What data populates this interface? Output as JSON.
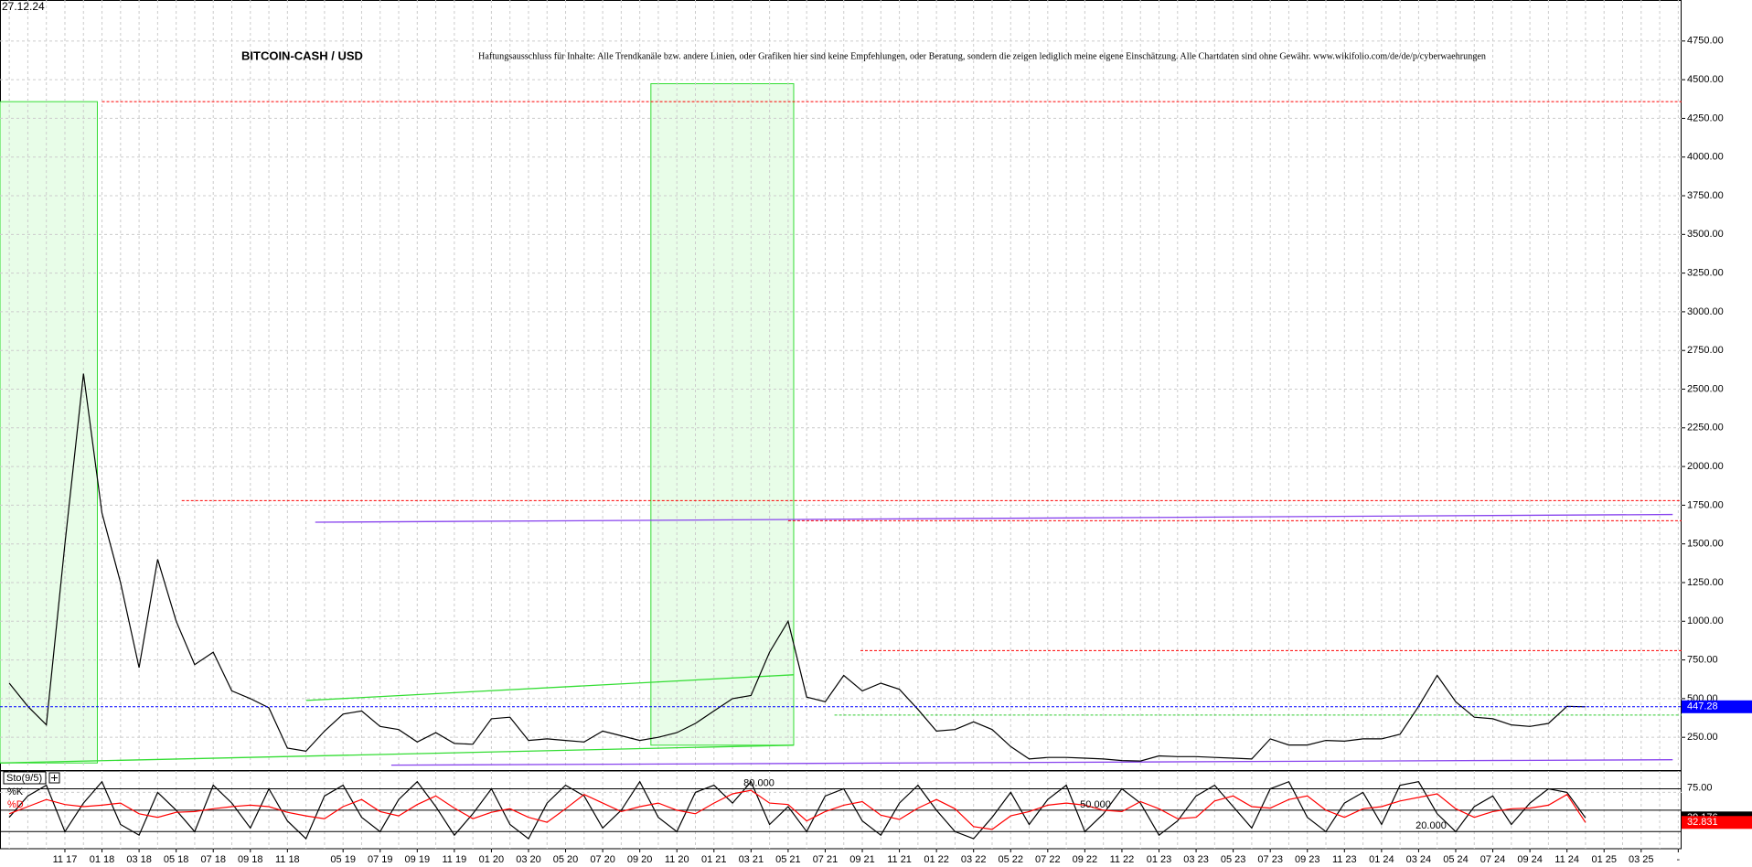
{
  "chart_data": [
    {
      "type": "line",
      "date_label": "27.12.24",
      "title": "BITCOIN-CASH / USD",
      "annotation": "Haftungsausschluss für Inhalte: Alle Trendkanäle bzw. andere Linien, oder Grafiken hier sind keine Empfehlungen, oder Beratung, sondern die zeigen lediglich meine eigene Einschätzung. Alle Chartdaten sind ohne Gewähr. www.wikifolio.com/de/de/p/cyberwaehrungen",
      "categories": [
        null,
        null,
        null,
        "11 17",
        null,
        "01 18",
        null,
        "03 18",
        null,
        "05 18",
        null,
        "07 18",
        null,
        "09 18",
        null,
        "11 18",
        null,
        null,
        "05 19",
        null,
        "07 19",
        null,
        "09 19",
        null,
        "11 19",
        null,
        "01 20",
        null,
        "03 20",
        null,
        "05 20",
        null,
        "07 20",
        null,
        "09 20",
        null,
        "11 20",
        null,
        "01 21",
        null,
        "03 21",
        null,
        "05 21",
        null,
        "07 21",
        null,
        "09 21",
        null,
        "11 21",
        null,
        "01 22",
        null,
        "03 22",
        null,
        "05 22",
        null,
        "07 22",
        null,
        "09 22",
        null,
        "11 22",
        null,
        "01 23",
        null,
        "03 23",
        null,
        "05 23",
        null,
        "07 23",
        null,
        "09 23",
        null,
        "11 23",
        null,
        "01 24",
        null,
        "03 24",
        null,
        "05 24",
        null,
        "07 24",
        null,
        "09 24",
        null,
        "11 24",
        null,
        "01 25",
        null,
        "03 25",
        null,
        "-"
      ],
      "series": [
        {
          "color": "#000000",
          "values": [
            600,
            450,
            330,
            1500,
            2600,
            1700,
            1250,
            700,
            1400,
            1000,
            720,
            800,
            550,
            500,
            440,
            180,
            160,
            290,
            400,
            420,
            320,
            300,
            220,
            280,
            210,
            205,
            370,
            380,
            230,
            240,
            230,
            220,
            290,
            260,
            230,
            250,
            280,
            340,
            420,
            500,
            520,
            800,
            1000,
            510,
            480,
            650,
            550,
            600,
            560,
            430,
            290,
            300,
            350,
            300,
            190,
            110,
            120,
            120,
            115,
            110,
            100,
            97,
            130,
            125,
            125,
            120,
            115,
            110,
            240,
            200,
            200,
            230,
            225,
            240,
            240,
            270,
            450,
            650,
            480,
            380,
            370,
            330,
            320,
            340,
            450,
            447.28,
            null,
            null,
            null,
            null,
            null
          ]
        }
      ],
      "ylim": [
        56,
        5015
      ],
      "yticks": [
        {
          "value": 250,
          "label": "250.00"
        },
        {
          "value": 500,
          "label": "500.00"
        },
        {
          "value": 750,
          "label": "750.00"
        },
        {
          "value": 1000,
          "label": "1000.00"
        },
        {
          "value": 1250,
          "label": "1250.00"
        },
        {
          "value": 1500,
          "label": "1500.00"
        },
        {
          "value": 1750,
          "label": "1750.00"
        },
        {
          "value": 2000,
          "label": "2000.00"
        },
        {
          "value": 2250,
          "label": "2250.00"
        },
        {
          "value": 2500,
          "label": "2500.00"
        },
        {
          "value": 2750,
          "label": "2750.00"
        },
        {
          "value": 3000,
          "label": "3000.00"
        },
        {
          "value": 3250,
          "label": "3250.00"
        },
        {
          "value": 3500,
          "label": "3500.00"
        },
        {
          "value": 3750,
          "label": "3750.00"
        },
        {
          "value": 4000,
          "label": "4000.00"
        },
        {
          "value": 4250,
          "label": "4250.00"
        },
        {
          "value": 4500,
          "label": "4500.00"
        },
        {
          "value": 4750,
          "label": "4750.00"
        }
      ],
      "grid": true,
      "current_line_color": "#0000ff",
      "zones": [
        {
          "x": [
            -0.5,
            4.75
          ],
          "y": [
            84,
            4358
          ],
          "fill": "#e8fde8",
          "stroke": "#33dd33"
        },
        {
          "x": [
            34.6,
            42.3
          ],
          "y": [
            199,
            4474
          ],
          "fill": "#e8fde8",
          "stroke": "#33dd33"
        }
      ],
      "hlines": [
        {
          "value": 4358,
          "from": 5,
          "color": "#ff0000"
        },
        {
          "value": 1780,
          "from": 9.3,
          "color": "#ff0000"
        },
        {
          "value": 1650,
          "from": 42,
          "color": "#ff0000"
        },
        {
          "value": 810,
          "from": 45.9,
          "color": "#ff0000"
        },
        {
          "value": 394,
          "from": 44.5,
          "color": "#33cc33"
        }
      ],
      "trendlines": [
        {
          "x": [
            16,
            42.3
          ],
          "y": [
            488,
            654
          ],
          "color": "#33dd33"
        },
        {
          "x": [
            -0.5,
            42.3
          ],
          "y": [
            84,
            199
          ],
          "color": "#33dd33"
        },
        {
          "x": [
            16.5,
            89.7
          ],
          "y": [
            1640,
            1690
          ],
          "color": "#8844ee"
        },
        {
          "x": [
            20.6,
            89.7
          ],
          "y": [
            70,
            105
          ],
          "color": "#8844ee"
        }
      ]
    },
    {
      "type": "line",
      "name": "Sto(9/5)",
      "series": [
        {
          "name": "%K",
          "color": "#000000",
          "values": [
            40,
            70,
            85,
            20,
            60,
            90,
            30,
            15,
            75,
            50,
            20,
            85,
            60,
            25,
            80,
            35,
            10,
            70,
            85,
            40,
            20,
            65,
            90,
            55,
            15,
            45,
            80,
            30,
            10,
            60,
            85,
            70,
            25,
            50,
            90,
            40,
            20,
            75,
            85,
            60,
            90,
            30,
            55,
            20,
            70,
            80,
            35,
            15,
            60,
            85,
            50,
            20,
            10,
            40,
            75,
            30,
            65,
            85,
            20,
            45,
            80,
            60,
            15,
            35,
            70,
            85,
            55,
            25,
            80,
            90,
            40,
            20,
            60,
            75,
            30,
            85,
            90,
            45,
            20,
            55,
            70,
            30,
            60,
            80,
            75,
            39.176,
            null,
            null,
            null,
            null,
            null
          ]
        },
        {
          "name": "%D",
          "color": "#ff0000",
          "values": [
            45,
            55,
            65,
            58,
            55,
            57,
            60,
            45,
            40,
            47,
            48,
            52,
            55,
            57,
            55,
            47,
            42,
            38,
            55,
            65,
            48,
            42,
            58,
            70,
            53,
            38,
            47,
            52,
            40,
            33,
            52,
            72,
            60,
            48,
            55,
            60,
            50,
            45,
            60,
            73,
            78,
            60,
            58,
            35,
            48,
            57,
            62,
            43,
            37,
            53,
            65,
            52,
            27,
            23,
            42,
            48,
            57,
            60,
            57,
            50,
            48,
            62,
            52,
            38,
            40,
            63,
            70,
            55,
            53,
            65,
            70,
            50,
            40,
            52,
            55,
            63,
            68,
            73,
            52,
            40,
            48,
            52,
            53,
            57,
            72,
            32.831,
            null,
            null,
            null,
            null,
            null
          ]
        }
      ],
      "ylim": [
        -4,
        105
      ],
      "yticks": [
        {
          "value": 75,
          "label": "75.00"
        }
      ],
      "levels": [
        {
          "value": 80,
          "label": "80.000"
        },
        {
          "value": 50,
          "label": "50.000"
        },
        {
          "value": 20,
          "label": "20.000"
        }
      ],
      "grid": true
    }
  ]
}
